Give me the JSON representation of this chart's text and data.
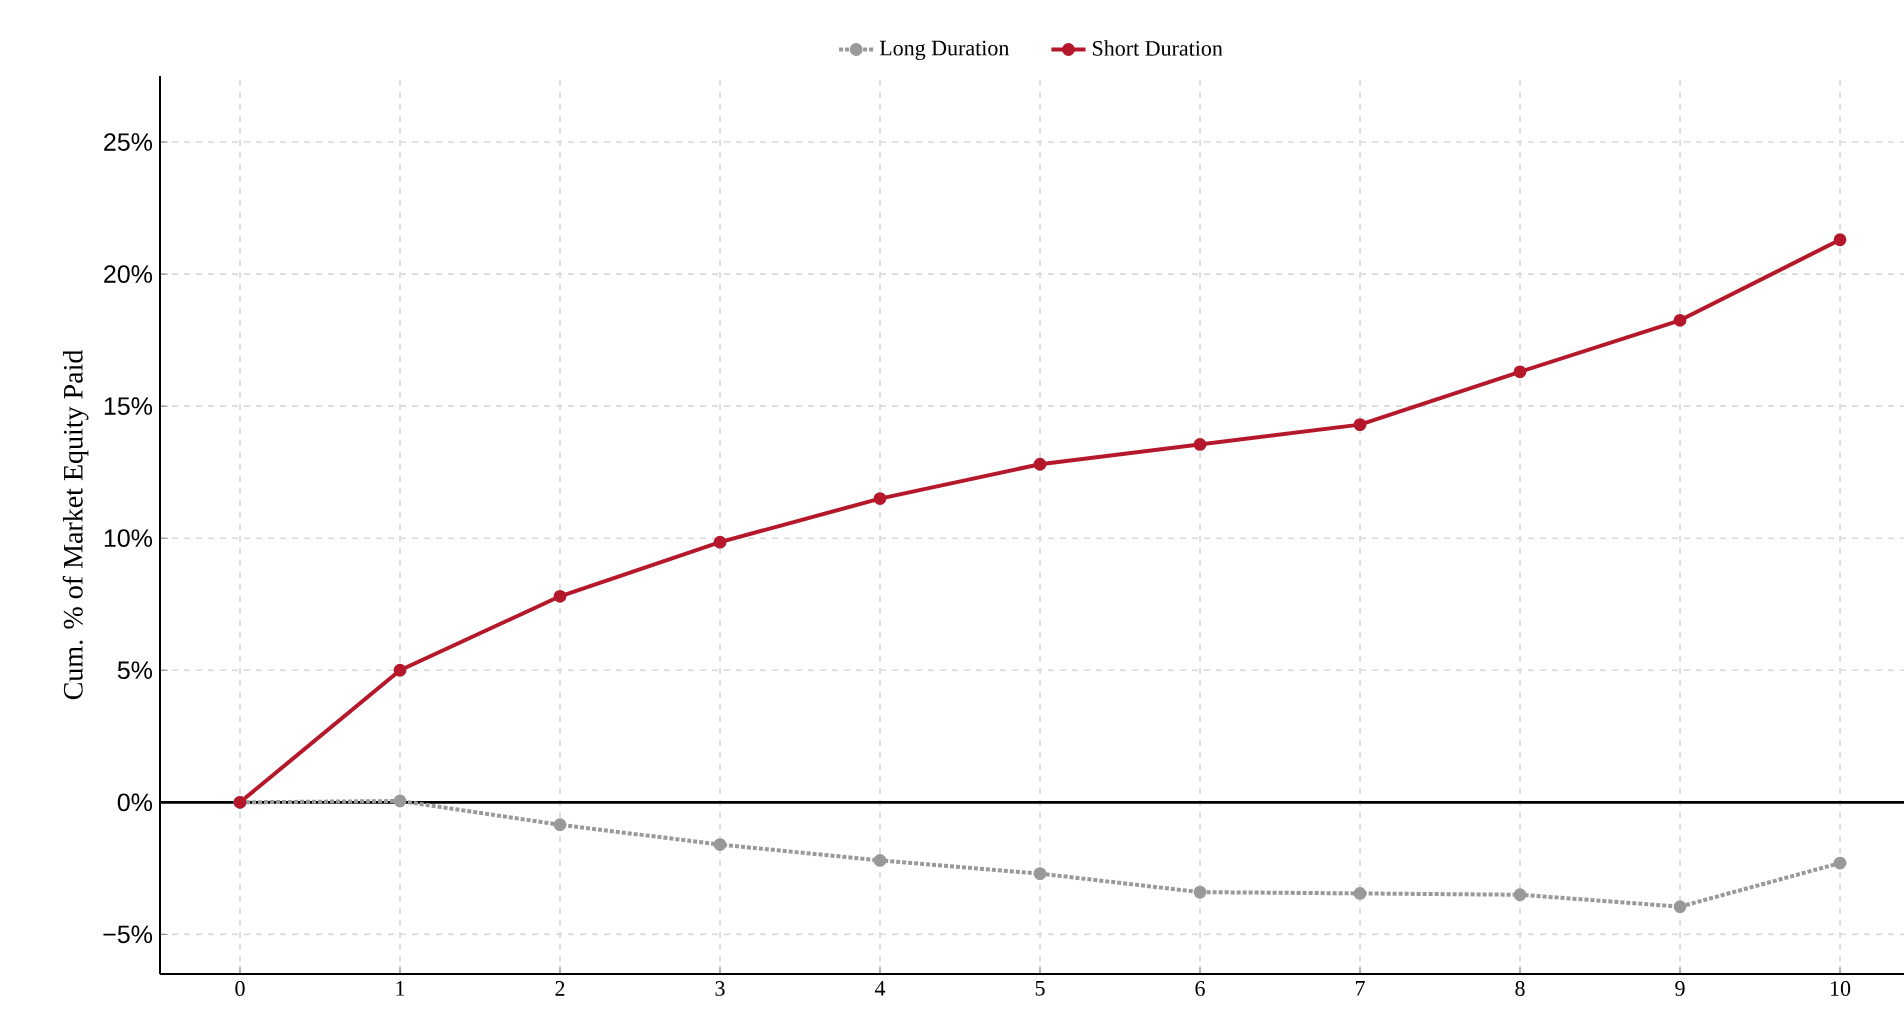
{
  "chart_data": {
    "type": "line",
    "ylabel": "Cum. % of Market Equity Paid",
    "x": [
      0,
      1,
      2,
      3,
      4,
      5,
      6,
      7,
      8,
      9,
      10
    ],
    "series": [
      {
        "name": "Long Duration",
        "color": "#999999",
        "line_style": "dotted",
        "values": [
          0,
          0.05,
          -0.85,
          -1.6,
          -2.2,
          -2.7,
          -3.4,
          -3.45,
          -3.5,
          -3.95,
          -2.3
        ]
      },
      {
        "name": "Short Duration",
        "color": "#b5182b",
        "line_style": "solid",
        "values": [
          0,
          5.0,
          7.8,
          9.85,
          11.5,
          12.8,
          13.55,
          14.3,
          16.3,
          18.25,
          21.3
        ]
      }
    ],
    "xlim": [
      -0.5,
      10.4
    ],
    "ylim": [
      -6.5,
      27.5
    ],
    "xticks": [
      0,
      1,
      2,
      3,
      4,
      5,
      6,
      7,
      8,
      9,
      10
    ],
    "yticks": [
      {
        "value": -5,
        "label": "−5%"
      },
      {
        "value": 0,
        "label": "0%"
      },
      {
        "value": 5,
        "label": "5%"
      },
      {
        "value": 10,
        "label": "10%"
      },
      {
        "value": 15,
        "label": "15%"
      },
      {
        "value": 20,
        "label": "20%"
      },
      {
        "value": 25,
        "label": "25%"
      }
    ],
    "ref_lines": [
      {
        "axis": "y",
        "value": 0,
        "color": "#000000"
      }
    ],
    "grid": true,
    "legend": "top",
    "marker": "circle"
  }
}
